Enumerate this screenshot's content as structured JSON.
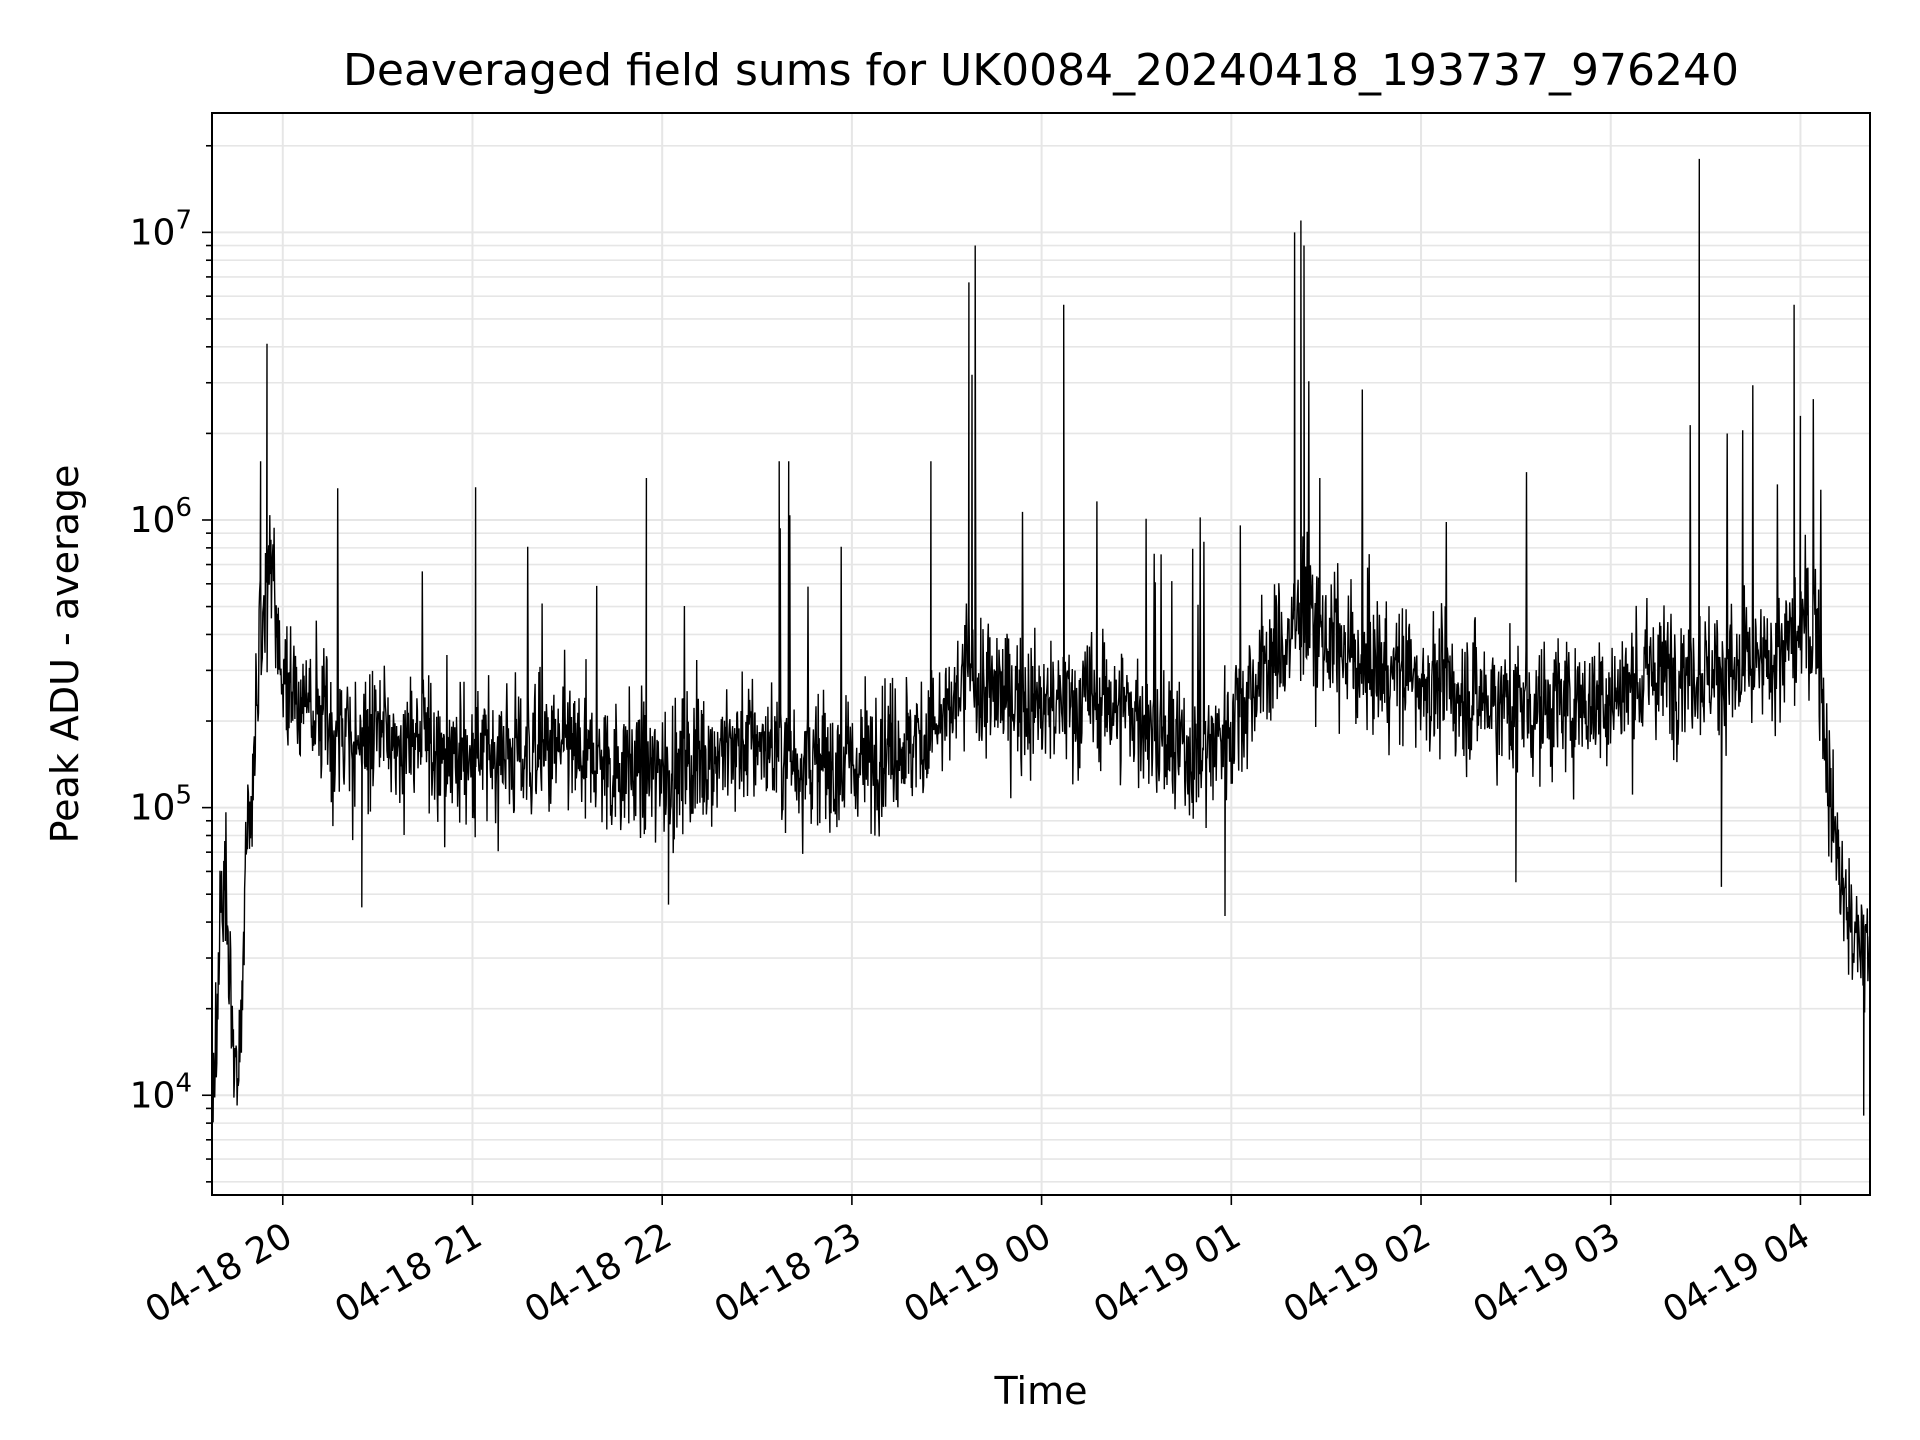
{
  "chart_data": {
    "type": "line",
    "title": "Deaveraged field sums for UK0084_20240418_193737_976240",
    "xlabel": "Time",
    "ylabel": "Peak ADU - average",
    "yscale": "log",
    "ylim": [
      4500,
      26000000
    ],
    "xlim": [
      "2024-04-18 19:37:37",
      "2024-04-19 04:22:00"
    ],
    "x_ticks": [
      "2024-04-18 20:00",
      "2024-04-18 21:00",
      "2024-04-18 22:00",
      "2024-04-18 23:00",
      "2024-04-19 00:00",
      "2024-04-19 01:00",
      "2024-04-19 02:00",
      "2024-04-19 03:00",
      "2024-04-19 04:00"
    ],
    "x_tick_labels": [
      "04-18 20",
      "04-18 21",
      "04-18 22",
      "04-18 23",
      "04-19 00",
      "04-19 01",
      "04-19 02",
      "04-19 03",
      "04-19 04"
    ],
    "y_ticks": [
      {
        "value": 10000,
        "base": "10",
        "exp": "4"
      },
      {
        "value": 100000,
        "base": "10",
        "exp": "5"
      },
      {
        "value": 1000000,
        "base": "10",
        "exp": "6"
      },
      {
        "value": 10000000,
        "base": "10",
        "exp": "7"
      }
    ],
    "grid": true,
    "line_color": "#000000",
    "grid_color": "#e6e6e6",
    "series": [
      {
        "x": [
          "2024-04-18 19:38",
          "2024-04-18 19:40",
          "2024-04-18 19:42",
          "2024-04-18 19:44",
          "2024-04-18 19:46",
          "2024-04-18 19:48",
          "2024-04-18 19:50",
          "2024-04-18 19:52",
          "2024-04-18 19:54",
          "2024-04-18 19:56",
          "2024-04-18 19:58",
          "2024-04-18 20:00",
          "2024-04-18 20:05",
          "2024-04-18 20:10",
          "2024-04-18 20:15",
          "2024-04-18 20:20",
          "2024-04-18 20:30",
          "2024-04-18 20:40",
          "2024-04-18 20:50",
          "2024-04-18 21:00",
          "2024-04-18 21:10",
          "2024-04-18 21:20",
          "2024-04-18 21:30",
          "2024-04-18 21:40",
          "2024-04-18 21:50",
          "2024-04-18 22:00",
          "2024-04-18 22:10",
          "2024-04-18 22:20",
          "2024-04-18 22:30",
          "2024-04-18 22:40",
          "2024-04-18 22:50",
          "2024-04-18 23:00",
          "2024-04-18 23:10",
          "2024-04-18 23:20",
          "2024-04-18 23:30",
          "2024-04-18 23:38",
          "2024-04-18 23:40",
          "2024-04-18 23:50",
          "2024-04-19 00:00",
          "2024-04-19 00:10",
          "2024-04-19 00:20",
          "2024-04-19 00:30",
          "2024-04-19 00:40",
          "2024-04-19 00:50",
          "2024-04-19 01:00",
          "2024-04-19 01:10",
          "2024-04-19 01:20",
          "2024-04-19 01:22",
          "2024-04-19 01:30",
          "2024-04-19 01:40",
          "2024-04-19 01:50",
          "2024-04-19 02:00",
          "2024-04-19 02:10",
          "2024-04-19 02:20",
          "2024-04-19 02:30",
          "2024-04-19 02:40",
          "2024-04-19 02:50",
          "2024-04-19 03:00",
          "2024-04-19 03:10",
          "2024-04-19 03:20",
          "2024-04-19 03:28",
          "2024-04-19 03:30",
          "2024-04-19 03:40",
          "2024-04-19 03:50",
          "2024-04-19 04:00",
          "2024-04-19 04:05",
          "2024-04-19 04:10",
          "2024-04-19 04:15",
          "2024-04-19 04:20"
        ],
        "y": [
          8000,
          40000,
          60000,
          15000,
          10000,
          60000,
          120000,
          250000,
          450000,
          700000,
          400000,
          280000,
          230000,
          220000,
          180000,
          170000,
          180000,
          170000,
          160000,
          150000,
          160000,
          150000,
          160000,
          140000,
          140000,
          130000,
          150000,
          160000,
          170000,
          150000,
          140000,
          140000,
          160000,
          170000,
          200000,
          320000,
          250000,
          250000,
          220000,
          230000,
          240000,
          210000,
          160000,
          150000,
          200000,
          300000,
          400000,
          500000,
          380000,
          320000,
          300000,
          280000,
          250000,
          240000,
          230000,
          220000,
          230000,
          240000,
          280000,
          300000,
          310000,
          300000,
          290000,
          310000,
          400000,
          450000,
          90000,
          40000,
          30000
        ]
      }
    ],
    "spikes": [
      {
        "x": "2024-04-18 19:55",
        "y": 4100000
      },
      {
        "x": "2024-04-18 19:53",
        "y": 1600000
      },
      {
        "x": "2024-04-18 20:25",
        "y": 45000
      },
      {
        "x": "2024-04-18 21:01",
        "y": 1300000
      },
      {
        "x": "2024-04-18 21:55",
        "y": 1400000
      },
      {
        "x": "2024-04-18 22:02",
        "y": 46000
      },
      {
        "x": "2024-04-18 22:37",
        "y": 1600000
      },
      {
        "x": "2024-04-18 22:40",
        "y": 1600000
      },
      {
        "x": "2024-04-18 23:25",
        "y": 1600000
      },
      {
        "x": "2024-04-18 23:37",
        "y": 6700000
      },
      {
        "x": "2024-04-18 23:39",
        "y": 9000000
      },
      {
        "x": "2024-04-18 23:38",
        "y": 3200000
      },
      {
        "x": "2024-04-19 00:07",
        "y": 5600000
      },
      {
        "x": "2024-04-19 00:58",
        "y": 42000
      },
      {
        "x": "2024-04-19 01:20",
        "y": 10000000
      },
      {
        "x": "2024-04-19 01:22",
        "y": 11000000
      },
      {
        "x": "2024-04-19 01:23",
        "y": 9000000
      },
      {
        "x": "2024-04-19 01:28",
        "y": 1400000
      },
      {
        "x": "2024-04-19 02:30",
        "y": 55000
      },
      {
        "x": "2024-04-19 03:28",
        "y": 18000000
      },
      {
        "x": "2024-04-19 03:35",
        "y": 53000
      },
      {
        "x": "2024-04-19 03:58",
        "y": 5600000
      },
      {
        "x": "2024-04-19 04:00",
        "y": 2300000
      },
      {
        "x": "2024-04-19 04:20",
        "y": 8500
      }
    ]
  }
}
